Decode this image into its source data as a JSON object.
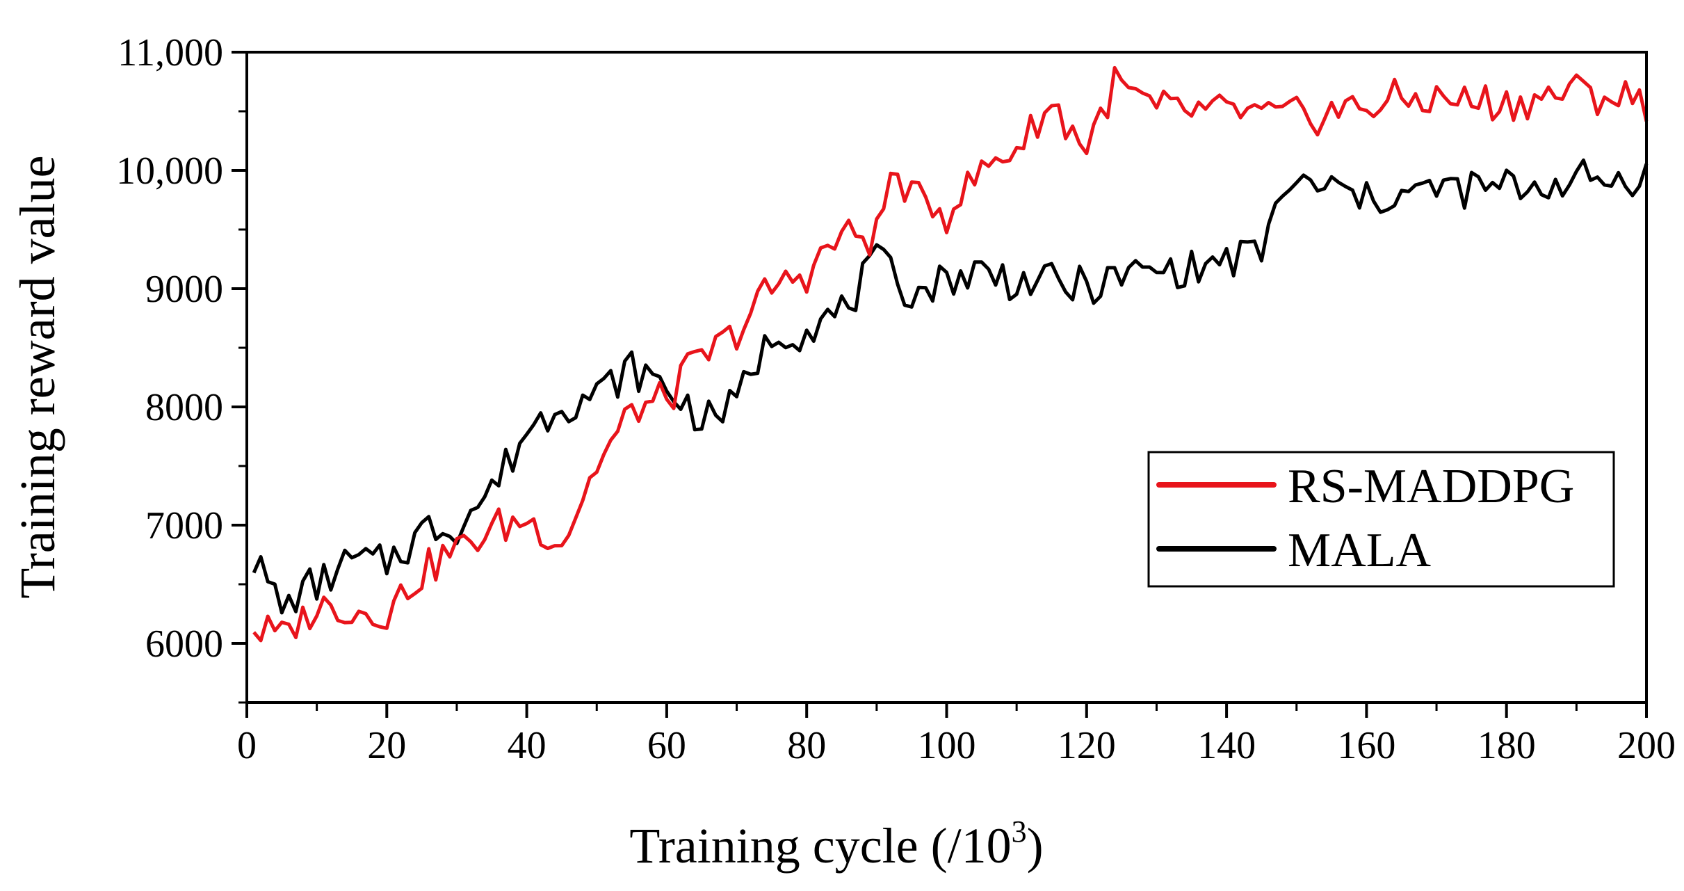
{
  "chart_data": {
    "type": "line",
    "title": "",
    "xlabel": "Training cycle (/10",
    "xlabel_sup": "3",
    "xlabel_suffix": ")",
    "ylabel": "Training reward value",
    "xlim": [
      0,
      200
    ],
    "ylim": [
      5500,
      11000
    ],
    "x_ticks": [
      0,
      20,
      40,
      60,
      80,
      100,
      120,
      140,
      160,
      180,
      200
    ],
    "x_tick_labels": [
      "0",
      "20",
      "40",
      "60",
      "80",
      "100",
      "120",
      "140",
      "160",
      "180",
      "200"
    ],
    "y_ticks": [
      6000,
      7000,
      8000,
      9000,
      10000,
      11000
    ],
    "y_tick_labels": [
      "6000",
      "7000",
      "8000",
      "9000",
      "10,000",
      "11,000"
    ],
    "grid": false,
    "legend_position": "right",
    "colors": {
      "rs_maddpg": "#e8141b",
      "mala": "#000000"
    },
    "series": [
      {
        "name": "RS-MADDPG",
        "key": "rs_maddpg",
        "anchors": [
          [
            1,
            6120
          ],
          [
            5,
            6050
          ],
          [
            10,
            6300
          ],
          [
            15,
            6280
          ],
          [
            20,
            6250
          ],
          [
            25,
            6600
          ],
          [
            30,
            6800
          ],
          [
            35,
            6950
          ],
          [
            40,
            7050
          ],
          [
            45,
            6850
          ],
          [
            50,
            7500
          ],
          [
            55,
            7950
          ],
          [
            60,
            8100
          ],
          [
            65,
            8400
          ],
          [
            70,
            8650
          ],
          [
            75,
            9000
          ],
          [
            80,
            9150
          ],
          [
            85,
            9450
          ],
          [
            90,
            9450
          ],
          [
            92,
            9950
          ],
          [
            95,
            9800
          ],
          [
            100,
            9650
          ],
          [
            105,
            10000
          ],
          [
            110,
            10200
          ],
          [
            115,
            10550
          ],
          [
            120,
            10200
          ],
          [
            124,
            10750
          ],
          [
            130,
            10500
          ],
          [
            140,
            10500
          ],
          [
            150,
            10450
          ],
          [
            160,
            10550
          ],
          [
            170,
            10620
          ],
          [
            180,
            10550
          ],
          [
            190,
            10680
          ],
          [
            200,
            10580
          ]
        ]
      },
      {
        "name": "MALA",
        "key": "mala",
        "anchors": [
          [
            1,
            6720
          ],
          [
            5,
            6300
          ],
          [
            10,
            6500
          ],
          [
            15,
            6700
          ],
          [
            20,
            6700
          ],
          [
            25,
            6950
          ],
          [
            30,
            7000
          ],
          [
            35,
            7300
          ],
          [
            40,
            7800
          ],
          [
            45,
            8050
          ],
          [
            50,
            8100
          ],
          [
            55,
            8350
          ],
          [
            60,
            8150
          ],
          [
            65,
            7900
          ],
          [
            70,
            8050
          ],
          [
            75,
            8600
          ],
          [
            80,
            8650
          ],
          [
            85,
            8800
          ],
          [
            90,
            9250
          ],
          [
            95,
            8950
          ],
          [
            100,
            9100
          ],
          [
            105,
            9150
          ],
          [
            110,
            9050
          ],
          [
            115,
            9050
          ],
          [
            120,
            9000
          ],
          [
            125,
            9100
          ],
          [
            130,
            9150
          ],
          [
            135,
            9150
          ],
          [
            140,
            9250
          ],
          [
            145,
            9300
          ],
          [
            148,
            9850
          ],
          [
            155,
            9850
          ],
          [
            160,
            9750
          ],
          [
            170,
            9850
          ],
          [
            180,
            9850
          ],
          [
            190,
            9900
          ],
          [
            200,
            9950
          ]
        ]
      }
    ]
  }
}
